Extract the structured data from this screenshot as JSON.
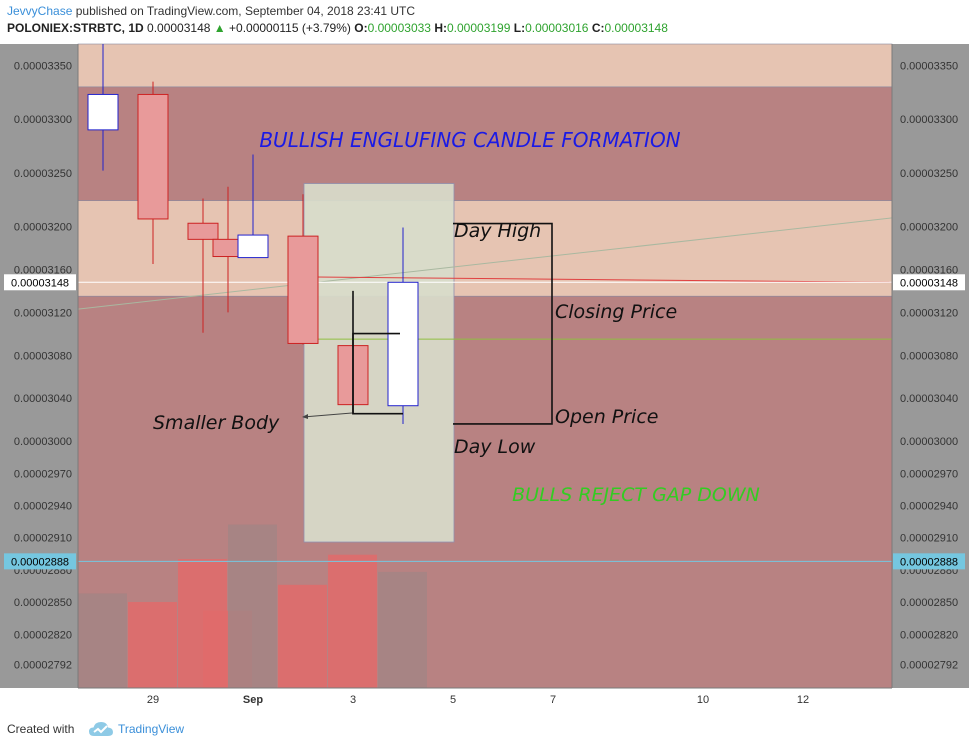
{
  "header": {
    "author": "JevvyChase",
    "published_text": "published on TradingView.com, September 04, 2018 23:41 UTC",
    "symbol": "POLONIEX:STRBTC, 1D",
    "last_price": "0.00003148",
    "change": "+0.00000115 (+3.79%)",
    "open_label": "O:",
    "open_value": "0.00003033",
    "high_label": "H:",
    "high_value": "0.00003199",
    "low_label": "L:",
    "low_value": "0.00003016",
    "close_label": "C:",
    "close_value": "0.00003148"
  },
  "footer": {
    "created_with": "Created with",
    "brand": "TradingView",
    "logo_icon": "tradingview-cloud-icon"
  },
  "colors": {
    "background": "#999999",
    "resistance_zone": "#e6c4b2",
    "support_zone": "#b88282",
    "bear_candle": "#e89a9a",
    "bull_candle": "#ffffff",
    "bull_outline": "#2222cc",
    "bear_outline": "#cc2222",
    "annotation_blue": "#1a1ae6",
    "annotation_green": "#33cc22",
    "focus_box": "#d8dccb",
    "axis_badge": "#75c7e0"
  },
  "chart_data": {
    "type": "candlestick",
    "title": "",
    "xlabel": "",
    "ylabel": "",
    "ylim": [
      2.77e-05,
      3.37e-05
    ],
    "y_ticks": [
      "0.00003350",
      "0.00003300",
      "0.00003250",
      "0.00003200",
      "0.00003160",
      "0.00003120",
      "0.00003080",
      "0.00003040",
      "0.00003000",
      "0.00002970",
      "0.00002940",
      "0.00002910",
      "0.00002880",
      "0.00002850",
      "0.00002820",
      "0.00002792"
    ],
    "x_ticks": [
      {
        "label": "29",
        "day": 29
      },
      {
        "label": "Sep",
        "day": 31,
        "bold": true
      },
      {
        "label": "3",
        "day": 33
      },
      {
        "label": "5",
        "day": 35
      },
      {
        "label": "7",
        "day": 37
      },
      {
        "label": "10",
        "day": 40
      },
      {
        "label": "12",
        "day": 42
      }
    ],
    "candles": [
      {
        "day": 28,
        "open": 3.29e-05,
        "high": 3.37e-05,
        "low": 3.252e-05,
        "close": 3.323e-05
      },
      {
        "day": 29,
        "open": 3.323e-05,
        "high": 3.335e-05,
        "low": 3.165e-05,
        "close": 3.207e-05
      },
      {
        "day": 30,
        "open": 3.203e-05,
        "high": 3.226e-05,
        "low": 3.101e-05,
        "close": 3.188e-05
      },
      {
        "day": 30.5,
        "open": 3.188e-05,
        "high": 3.237e-05,
        "low": 3.12e-05,
        "close": 3.172e-05
      },
      {
        "day": 31,
        "open": 3.171e-05,
        "high": 3.267e-05,
        "low": 3.171e-05,
        "close": 3.192e-05
      },
      {
        "day": 32,
        "open": 3.191e-05,
        "high": 3.23e-05,
        "low": 3.09e-05,
        "close": 3.091e-05
      },
      {
        "day": 33,
        "open": 3.089e-05,
        "high": 3.1e-05,
        "low": 3.027e-05,
        "close": 3.034e-05
      },
      {
        "day": 34,
        "open": 3.033e-05,
        "high": 3.199e-05,
        "low": 3.016e-05,
        "close": 3.148e-05
      }
    ],
    "volume": [
      {
        "day": 28,
        "value": 0.22,
        "type": "bull"
      },
      {
        "day": 29,
        "value": 0.2,
        "type": "bear"
      },
      {
        "day": 30,
        "value": 0.3,
        "type": "bear"
      },
      {
        "day": 30.5,
        "value": 0.18,
        "type": "bear"
      },
      {
        "day": 31,
        "value": 0.38,
        "type": "bull"
      },
      {
        "day": 32,
        "value": 0.24,
        "type": "bear"
      },
      {
        "day": 33,
        "value": 0.31,
        "type": "bear"
      },
      {
        "day": 34,
        "value": 0.27,
        "type": "bull"
      }
    ],
    "zones": [
      {
        "name": "upper-resistance",
        "y_top": 3.37e-05,
        "y_bottom": 3.33e-05
      },
      {
        "name": "upper-support",
        "y_top": 3.33e-05,
        "y_bottom": 3.224e-05
      },
      {
        "name": "middle-resistance",
        "y_top": 3.224e-05,
        "y_bottom": 3.135e-05
      },
      {
        "name": "lower-support",
        "y_top": 3.135e-05,
        "y_bottom": 2.77e-05
      }
    ],
    "price_lines": [
      {
        "label": "0.00003148",
        "value": 3.148e-05,
        "color": "#ffffff",
        "badge": "#ffffff"
      },
      {
        "label": "0.00002888",
        "value": 2.888e-05,
        "color": "#75c7e0",
        "badge": "#75c7e0"
      }
    ],
    "annotations": {
      "title": "BULLISH ENGLUFING CANDLE FORMATION",
      "subtitle": "BULLS REJECT GAP DOWN",
      "day_high": "Day High",
      "day_low": "Day Low",
      "closing_price": "Closing Price",
      "open_price": "Open Price",
      "smaller_body": "Smaller Body"
    }
  }
}
